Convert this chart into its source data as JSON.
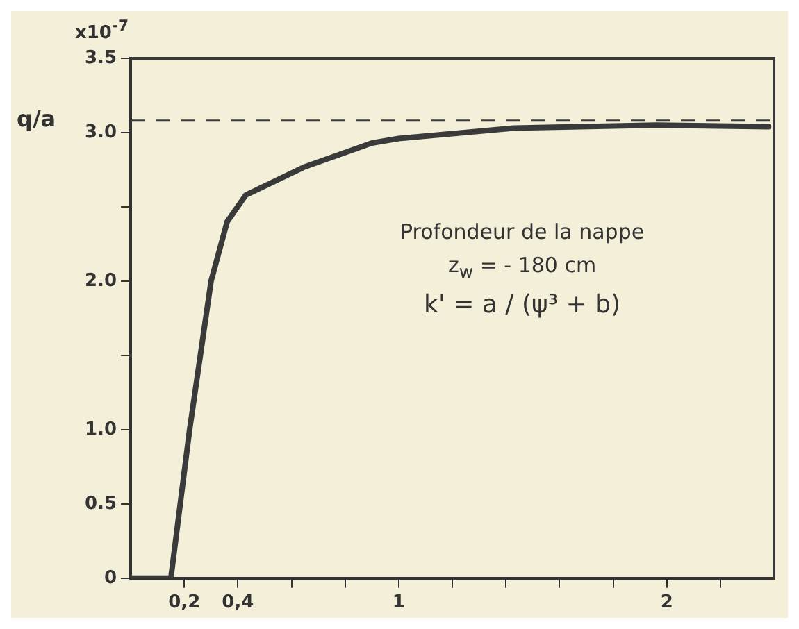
{
  "chart_data": {
    "type": "line",
    "ylabel": "q/a",
    "x": [
      0,
      0.15,
      0.22,
      0.3,
      0.36,
      0.43,
      0.65,
      0.9,
      1.0,
      1.43,
      1.96,
      2.38
    ],
    "series": [
      {
        "color": "#3a3a3a",
        "values": [
          0,
          0,
          1.0,
          2.0,
          2.4,
          2.58,
          2.77,
          2.93,
          2.96,
          3.03,
          3.05,
          3.04
        ]
      }
    ],
    "xlim": [
      0,
      2.4
    ],
    "xticks": [
      {
        "value": 0.2,
        "label": "0,2"
      },
      {
        "value": 0.4,
        "label": "0,4"
      },
      {
        "value": 0.6,
        "label": null
      },
      {
        "value": 0.8,
        "label": null
      },
      1,
      {
        "value": 1.2,
        "label": null
      },
      {
        "value": 1.4,
        "label": null
      },
      {
        "value": 1.6,
        "label": null
      },
      {
        "value": 1.8,
        "label": null
      },
      2,
      {
        "value": 2.2,
        "label": null
      }
    ],
    "ylim": [
      0,
      3.5
    ],
    "yticks": [
      0,
      {
        "value": 0.5,
        "label": "0.5"
      },
      {
        "value": 1,
        "label": "1.0"
      },
      {
        "value": 1.5,
        "label": null
      },
      {
        "value": 2,
        "label": "2.0"
      },
      {
        "value": 2.5,
        "label": null
      },
      {
        "value": 3,
        "label": "3.0"
      },
      3.5
    ],
    "ref_lines": [
      {
        "axis": "y",
        "value": 3.08,
        "line_style": "dashed",
        "color": "#3a3a3a"
      }
    ],
    "annotations": [
      "x10$^{-7}$",
      "Profondeur de la nappe",
      "z$_{w}$ = - 180 cm",
      "k' = a / (ψ³ + b)"
    ],
    "marker": "none",
    "line_style": "solid",
    "grid": false,
    "legend": false
  }
}
